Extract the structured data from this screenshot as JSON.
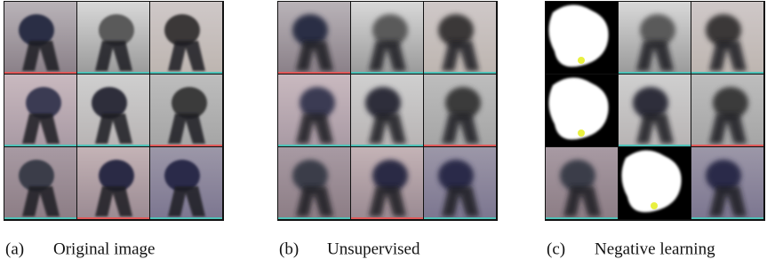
{
  "panels": [
    {
      "label": "(a)",
      "caption": "Original image"
    },
    {
      "label": "(b)",
      "caption": "Unsupervised"
    },
    {
      "label": "(c)",
      "caption": "Negative learning"
    }
  ]
}
